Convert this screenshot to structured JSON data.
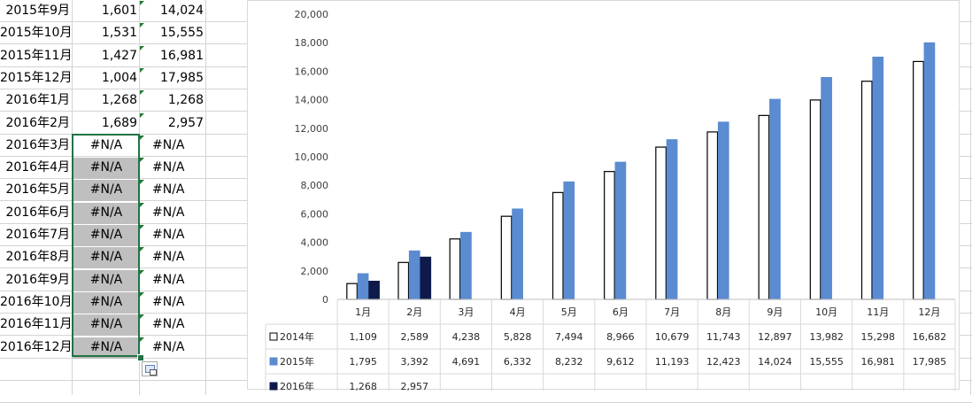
{
  "sheet": {
    "rows": [
      {
        "label": "2015年9月",
        "monthly": "1,601",
        "cumulative": "14,024"
      },
      {
        "label": "2015年10月",
        "monthly": "1,531",
        "cumulative": "15,555"
      },
      {
        "label": "2015年11月",
        "monthly": "1,427",
        "cumulative": "16,981"
      },
      {
        "label": "2015年12月",
        "monthly": "1,004",
        "cumulative": "17,985"
      },
      {
        "label": "2016年1月",
        "monthly": "1,268",
        "cumulative": "1,268"
      },
      {
        "label": "2016年2月",
        "monthly": "1,689",
        "cumulative": "2,957"
      },
      {
        "label": "2016年3月",
        "monthly": "#N/A",
        "cumulative": "#N/A"
      },
      {
        "label": "2016年4月",
        "monthly": "#N/A",
        "cumulative": "#N/A"
      },
      {
        "label": "2016年5月",
        "monthly": "#N/A",
        "cumulative": "#N/A"
      },
      {
        "label": "2016年6月",
        "monthly": "#N/A",
        "cumulative": "#N/A"
      },
      {
        "label": "2016年7月",
        "monthly": "#N/A",
        "cumulative": "#N/A"
      },
      {
        "label": "2016年8月",
        "monthly": "#N/A",
        "cumulative": "#N/A"
      },
      {
        "label": "2016年9月",
        "monthly": "#N/A",
        "cumulative": "#N/A"
      },
      {
        "label": "2016年10月",
        "monthly": "#N/A",
        "cumulative": "#N/A"
      },
      {
        "label": "2016年11月",
        "monthly": "#N/A",
        "cumulative": "#N/A"
      },
      {
        "label": "2016年12月",
        "monthly": "#N/A",
        "cumulative": "#N/A"
      }
    ],
    "selection_fill": "#bfbfbf",
    "selection_border": "#217346",
    "quick_analysis_icon": "quick-analysis-icon"
  },
  "chart_data": {
    "type": "bar",
    "categories": [
      "1月",
      "2月",
      "3月",
      "4月",
      "5月",
      "6月",
      "7月",
      "8月",
      "9月",
      "10月",
      "11月",
      "12月"
    ],
    "ylim": [
      0,
      20000
    ],
    "yticks": [
      "0",
      "2,000",
      "4,000",
      "6,000",
      "8,000",
      "10,000",
      "12,000",
      "14,000",
      "16,000",
      "18,000",
      "20,000"
    ],
    "ytick_values": [
      0,
      2000,
      4000,
      6000,
      8000,
      10000,
      12000,
      14000,
      16000,
      18000,
      20000
    ],
    "series": [
      {
        "name": "2014年",
        "color": "#ffffff",
        "stroke": "#000000",
        "values": [
          1109,
          2589,
          4238,
          5828,
          7494,
          8966,
          10679,
          11743,
          12897,
          13982,
          15298,
          16682
        ],
        "labels": [
          "1,109",
          "2,589",
          "4,238",
          "5,828",
          "7,494",
          "8,966",
          "10,679",
          "11,743",
          "12,897",
          "13,982",
          "15,298",
          "16,682"
        ]
      },
      {
        "name": "2015年",
        "color": "#5b8bd0",
        "stroke": "#5b8bd0",
        "values": [
          1795,
          3392,
          4691,
          6332,
          8232,
          9612,
          11193,
          12423,
          14024,
          15555,
          16981,
          17985
        ],
        "labels": [
          "1,795",
          "3,392",
          "4,691",
          "6,332",
          "8,232",
          "9,612",
          "11,193",
          "12,423",
          "14,024",
          "15,555",
          "16,981",
          "17,985"
        ]
      },
      {
        "name": "2016年",
        "color": "#0e1a4a",
        "stroke": "#0e1a4a",
        "values": [
          1268,
          2957,
          null,
          null,
          null,
          null,
          null,
          null,
          null,
          null,
          null,
          null
        ],
        "labels": [
          "1,268",
          "2,957",
          "",
          "",
          "",
          "",
          "",
          "",
          "",
          "",
          "",
          ""
        ]
      }
    ],
    "data_table": true,
    "grid": true
  }
}
